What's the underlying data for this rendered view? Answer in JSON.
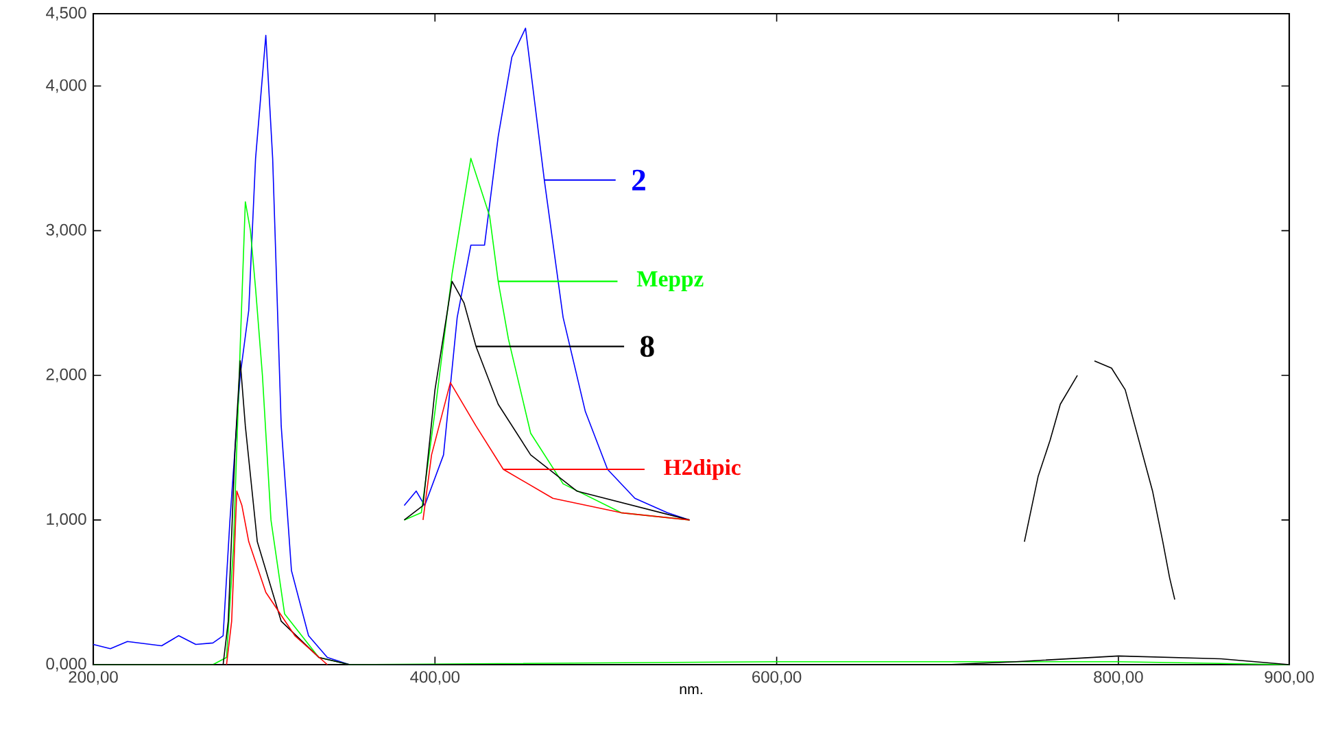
{
  "chart_data": {
    "type": "line",
    "xlabel": "nm.",
    "xlim": [
      200,
      900
    ],
    "ylim": [
      0,
      4.5
    ],
    "xticks": [
      {
        "value": 200,
        "label": "200,00"
      },
      {
        "value": 400,
        "label": "400,00"
      },
      {
        "value": 600,
        "label": "600,00"
      },
      {
        "value": 800,
        "label": "800,00"
      },
      {
        "value": 900,
        "label": "900,00"
      }
    ],
    "yticks": [
      {
        "value": 0,
        "label": "0,000"
      },
      {
        "value": 1,
        "label": "1,000"
      },
      {
        "value": 2,
        "label": "2,000"
      },
      {
        "value": 3,
        "label": "3,000"
      },
      {
        "value": 4,
        "label": "4,000"
      },
      {
        "value": 4.5,
        "label": "4,500"
      }
    ],
    "grid": false,
    "legend": "top",
    "marker": "none",
    "line_style": "solid",
    "series": [
      {
        "color": "#0000ff",
        "x": [
          200,
          210,
          220,
          240,
          250,
          260,
          270,
          276,
          280,
          286,
          291,
          295,
          301,
          305,
          310,
          316,
          326,
          337,
          350,
          400
        ],
        "values": [
          0.14,
          0.11,
          0.16,
          0.13,
          0.2,
          0.14,
          0.15,
          0.2,
          1.0,
          2.0,
          2.45,
          3.5,
          4.35,
          3.5,
          1.65,
          0.65,
          0.2,
          0.05,
          0,
          0
        ]
      },
      {
        "color": "#00ff00",
        "x": [
          200,
          270,
          278,
          282,
          286,
          289,
          292,
          295,
          299,
          304,
          312,
          332,
          350,
          600,
          800,
          900
        ],
        "values": [
          0,
          0,
          0.05,
          0.8,
          2.2,
          3.2,
          3.0,
          2.6,
          2.0,
          1.0,
          0.35,
          0.05,
          0,
          0.02,
          0.02,
          0
        ]
      },
      {
        "color": "#000000",
        "x": [
          200,
          276,
          279,
          283,
          286,
          289,
          296,
          310,
          332,
          350,
          700,
          740,
          800,
          860,
          900
        ],
        "values": [
          0,
          0,
          0.3,
          1.5,
          2.1,
          1.65,
          0.85,
          0.3,
          0.05,
          0,
          0,
          0.02,
          0.06,
          0.04,
          0
        ]
      },
      {
        "color": "#ff0000",
        "x": [
          278,
          281,
          284,
          287,
          291,
          301,
          318,
          337
        ],
        "values": [
          0,
          0.3,
          1.2,
          1.1,
          0.85,
          0.5,
          0.2,
          0
        ]
      },
      {
        "name": "2",
        "color": "#0000ff",
        "x": [
          382,
          389,
          394,
          405,
          413,
          421,
          429,
          437,
          445,
          453,
          464,
          475,
          488,
          501,
          517,
          536,
          549
        ],
        "values": [
          1.1,
          1.2,
          1.1,
          1.45,
          2.4,
          2.9,
          2.9,
          3.65,
          4.2,
          4.4,
          3.35,
          2.4,
          1.75,
          1.35,
          1.15,
          1.05,
          1.0
        ]
      },
      {
        "name": "Meppz",
        "color": "#00ff00",
        "x": [
          382,
          392,
          400,
          410,
          421,
          432,
          437,
          443,
          456,
          475,
          509,
          549
        ],
        "values": [
          1.0,
          1.05,
          1.75,
          2.7,
          3.5,
          3.1,
          2.65,
          2.25,
          1.6,
          1.25,
          1.05,
          1.0
        ]
      },
      {
        "name": "8",
        "color": "#000000",
        "x": [
          382,
          393,
          400,
          410,
          417,
          424,
          437,
          456,
          483,
          549,
          740,
          745,
          753,
          760,
          766,
          776,
          780,
          786,
          796,
          804,
          812,
          820,
          826,
          830,
          833
        ],
        "values": [
          1.0,
          1.1,
          1.9,
          2.65,
          2.5,
          2.2,
          1.8,
          1.45,
          1.2,
          1.0,
          null,
          0.85,
          1.3,
          1.55,
          1.8,
          2.0,
          null,
          2.1,
          2.05,
          1.9,
          1.55,
          1.2,
          0.85,
          0.6,
          0.45
        ]
      },
      {
        "name": "H2dipic",
        "color": "#ff0000",
        "x": [
          393,
          398,
          409,
          424,
          440,
          469,
          509,
          549
        ],
        "values": [
          1.0,
          1.45,
          1.95,
          1.65,
          1.35,
          1.15,
          1.05,
          1.0
        ]
      }
    ]
  }
}
